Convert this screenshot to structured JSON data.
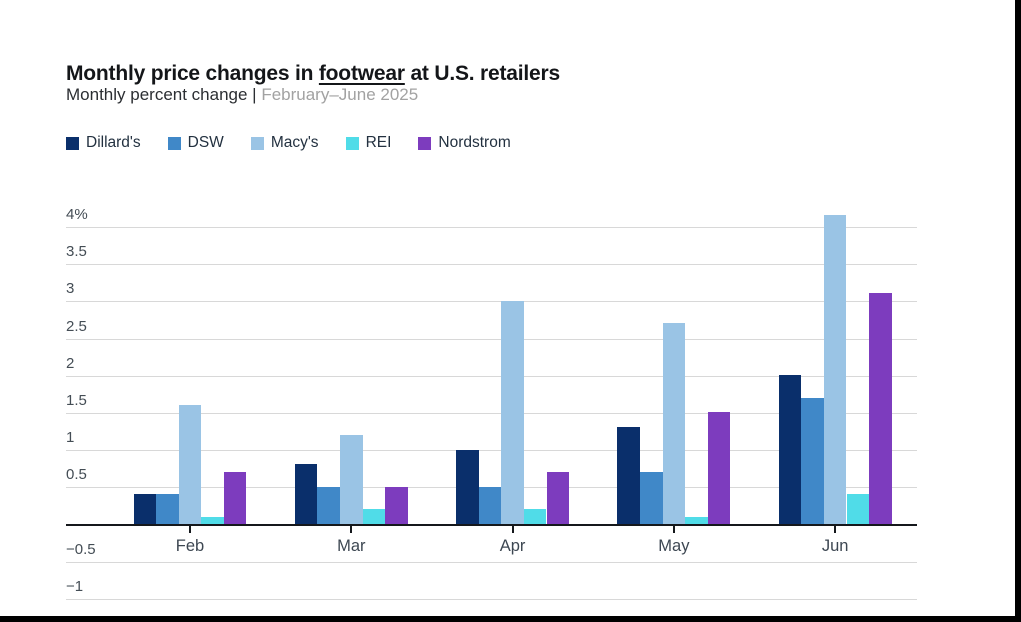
{
  "title": {
    "prefix": "Monthly price changes in ",
    "underlined": "footwear",
    "suffix": " at U.S. retailers"
  },
  "subtitle": {
    "dark": "Monthly percent change | ",
    "light": "February–June 2025"
  },
  "chart_data": {
    "type": "bar",
    "title": "Monthly price changes in footwear at U.S. retailers",
    "subtitle": "Monthly percent change | February–June 2025",
    "categories": [
      "Feb",
      "Mar",
      "Apr",
      "May",
      "Jun"
    ],
    "series": [
      {
        "name": "Dillard's",
        "color": "#0a2f6b",
        "values": [
          0.4,
          0.8,
          1.0,
          1.3,
          2.0
        ]
      },
      {
        "name": "DSW",
        "color": "#4088c8",
        "values": [
          0.4,
          0.5,
          0.5,
          0.7,
          1.7
        ]
      },
      {
        "name": "Macy's",
        "color": "#9ac4e5",
        "values": [
          1.6,
          1.2,
          3.0,
          2.7,
          4.15
        ]
      },
      {
        "name": "REI",
        "color": "#50dce8",
        "values": [
          0.1,
          0.2,
          0.2,
          0.1,
          0.4
        ]
      },
      {
        "name": "Nordstrom",
        "color": "#7d3cbe",
        "values": [
          0.7,
          0.5,
          0.7,
          1.5,
          3.1
        ]
      }
    ],
    "xlabel": "",
    "ylabel": "Monthly percent change",
    "y_ticks": [
      4,
      3.5,
      3,
      2.5,
      2,
      1.5,
      1,
      0.5,
      -0.5,
      -1
    ],
    "y_tick_labels": [
      "4%",
      "3.5",
      "3",
      "2.5",
      "2",
      "1.5",
      "1",
      "0.5",
      "−0.5",
      "−1"
    ],
    "ylim": [
      -1,
      4.3
    ],
    "grid": true,
    "legend_position": "top-left",
    "accent_colors": {
      "axis": "#15181c",
      "gridline": "#d8d8d8",
      "title_text": "#141619",
      "subtitle_muted": "#a2a2a2",
      "frame": "#000000"
    }
  }
}
